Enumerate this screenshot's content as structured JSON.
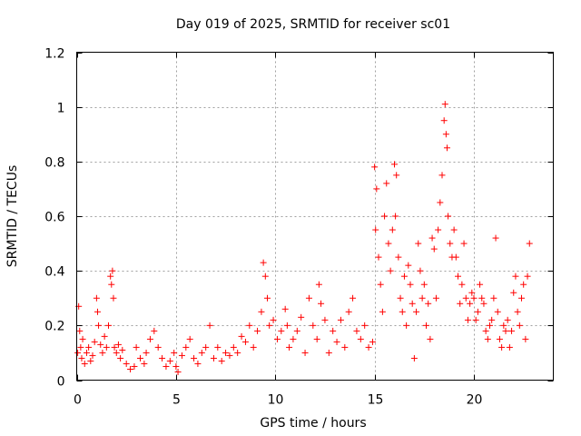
{
  "chart_data": {
    "type": "scatter",
    "title": "Day 019 of 2025, SRMTID for receiver sc01",
    "xlabel": "GPS time / hours",
    "ylabel": "SRMTID / TECUs",
    "xlim": [
      0,
      24
    ],
    "ylim": [
      0,
      1.2
    ],
    "x_ticks": [
      0,
      5,
      10,
      15,
      20
    ],
    "x_tick_labels": [
      "0",
      "5",
      "10",
      "15",
      "20"
    ],
    "y_ticks": [
      0,
      0.2,
      0.4,
      0.6,
      0.8,
      1.0,
      1.2
    ],
    "y_tick_labels": [
      "0",
      "0.2",
      "0.4",
      "0.6",
      "0.8",
      "1",
      "1.2"
    ],
    "grid": true,
    "marker": "plus",
    "color": "#ff0000",
    "series": [
      {
        "name": "SRMTID",
        "x": [
          0.05,
          0.1,
          0.15,
          0.2,
          0.25,
          0.3,
          0.4,
          0.5,
          0.6,
          0.7,
          0.8,
          0.9,
          1.0,
          1.05,
          1.1,
          1.2,
          1.3,
          1.4,
          1.5,
          1.6,
          1.7,
          1.75,
          1.8,
          1.85,
          1.9,
          2.0,
          2.1,
          2.2,
          2.3,
          2.5,
          2.7,
          2.9,
          3.0,
          3.2,
          3.4,
          3.5,
          3.7,
          3.9,
          4.1,
          4.3,
          4.5,
          4.7,
          4.9,
          5.0,
          5.1,
          5.3,
          5.5,
          5.7,
          5.9,
          6.1,
          6.3,
          6.5,
          6.7,
          6.9,
          7.1,
          7.3,
          7.5,
          7.7,
          7.9,
          8.1,
          8.3,
          8.5,
          8.7,
          8.9,
          9.1,
          9.3,
          9.4,
          9.5,
          9.6,
          9.7,
          9.9,
          10.1,
          10.3,
          10.5,
          10.6,
          10.7,
          10.9,
          11.1,
          11.3,
          11.5,
          11.7,
          11.9,
          12.1,
          12.2,
          12.3,
          12.5,
          12.7,
          12.9,
          13.1,
          13.3,
          13.5,
          13.7,
          13.9,
          14.1,
          14.3,
          14.5,
          14.7,
          14.9,
          15.0,
          15.05,
          15.1,
          15.2,
          15.3,
          15.4,
          15.5,
          15.6,
          15.7,
          15.8,
          15.9,
          16.0,
          16.05,
          16.1,
          16.2,
          16.3,
          16.4,
          16.5,
          16.6,
          16.7,
          16.8,
          16.9,
          17.0,
          17.1,
          17.2,
          17.3,
          17.4,
          17.5,
          17.6,
          17.7,
          17.8,
          17.9,
          18.0,
          18.1,
          18.2,
          18.3,
          18.4,
          18.5,
          18.55,
          18.6,
          18.65,
          18.7,
          18.8,
          18.9,
          19.0,
          19.1,
          19.2,
          19.3,
          19.4,
          19.5,
          19.6,
          19.7,
          19.8,
          19.9,
          20.0,
          20.1,
          20.2,
          20.3,
          20.4,
          20.5,
          20.6,
          20.7,
          20.8,
          20.9,
          21.0,
          21.1,
          21.2,
          21.3,
          21.4,
          21.5,
          21.6,
          21.7,
          21.8,
          21.9,
          22.0,
          22.1,
          22.2,
          22.3,
          22.4,
          22.5,
          22.6,
          22.7,
          22.8
        ],
        "y": [
          0.1,
          0.27,
          0.18,
          0.12,
          0.08,
          0.15,
          0.06,
          0.1,
          0.12,
          0.07,
          0.09,
          0.14,
          0.3,
          0.25,
          0.2,
          0.13,
          0.1,
          0.16,
          0.12,
          0.2,
          0.38,
          0.35,
          0.4,
          0.3,
          0.12,
          0.1,
          0.13,
          0.08,
          0.11,
          0.06,
          0.04,
          0.05,
          0.12,
          0.08,
          0.06,
          0.1,
          0.15,
          0.18,
          0.12,
          0.08,
          0.05,
          0.07,
          0.1,
          0.05,
          0.03,
          0.09,
          0.12,
          0.15,
          0.08,
          0.06,
          0.1,
          0.12,
          0.2,
          0.08,
          0.12,
          0.07,
          0.1,
          0.09,
          0.12,
          0.1,
          0.16,
          0.14,
          0.2,
          0.12,
          0.18,
          0.25,
          0.43,
          0.38,
          0.3,
          0.2,
          0.22,
          0.15,
          0.18,
          0.26,
          0.2,
          0.12,
          0.15,
          0.18,
          0.23,
          0.1,
          0.3,
          0.2,
          0.15,
          0.35,
          0.28,
          0.22,
          0.1,
          0.18,
          0.14,
          0.22,
          0.12,
          0.25,
          0.3,
          0.18,
          0.15,
          0.2,
          0.12,
          0.14,
          0.78,
          0.55,
          0.7,
          0.45,
          0.35,
          0.25,
          0.6,
          0.72,
          0.5,
          0.4,
          0.55,
          0.79,
          0.6,
          0.75,
          0.45,
          0.3,
          0.25,
          0.38,
          0.2,
          0.42,
          0.35,
          0.28,
          0.08,
          0.25,
          0.5,
          0.4,
          0.3,
          0.35,
          0.2,
          0.28,
          0.15,
          0.52,
          0.48,
          0.3,
          0.55,
          0.65,
          0.75,
          0.95,
          1.01,
          0.9,
          0.85,
          0.6,
          0.5,
          0.45,
          0.55,
          0.45,
          0.38,
          0.28,
          0.35,
          0.5,
          0.3,
          0.22,
          0.28,
          0.32,
          0.3,
          0.22,
          0.25,
          0.35,
          0.3,
          0.28,
          0.18,
          0.15,
          0.2,
          0.22,
          0.3,
          0.52,
          0.25,
          0.15,
          0.12,
          0.2,
          0.18,
          0.22,
          0.12,
          0.18,
          0.32,
          0.38,
          0.25,
          0.2,
          0.3,
          0.35,
          0.15,
          0.38,
          0.5
        ]
      }
    ]
  }
}
